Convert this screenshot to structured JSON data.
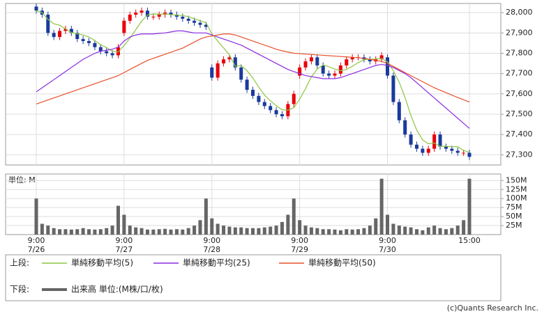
{
  "chart_data": [
    {
      "type": "candlestick",
      "open": [
        28030,
        28010,
        27990,
        27900,
        27880,
        27910,
        27920,
        27900,
        27870,
        27860,
        27850,
        27830,
        27810,
        27800,
        27790,
        27900,
        27960,
        27990,
        28000,
        28010,
        27980,
        27980,
        27990,
        28000,
        27990,
        27980,
        27970,
        27960,
        27950,
        27940,
        27730,
        27680,
        27750,
        27770,
        27780,
        27730,
        27670,
        27620,
        27590,
        27560,
        27540,
        27520,
        27500,
        27490,
        27550,
        27690,
        27730,
        27760,
        27780,
        27740,
        27700,
        27690,
        27700,
        27740,
        27770,
        27780,
        27780,
        27770,
        27760,
        27770,
        27780,
        27690,
        27560,
        27470,
        27400,
        27350,
        27330,
        27310,
        27330,
        27400,
        27340,
        27330,
        27320,
        27310,
        27310
      ],
      "high": [
        28045,
        28025,
        28005,
        27915,
        27925,
        27935,
        27935,
        27915,
        27885,
        27875,
        27865,
        27845,
        27825,
        27815,
        27845,
        27975,
        28005,
        28015,
        28025,
        28025,
        27995,
        28005,
        28015,
        28015,
        28005,
        27995,
        27985,
        27975,
        27965,
        27955,
        27745,
        27765,
        27785,
        27795,
        27795,
        27745,
        27685,
        27635,
        27605,
        27575,
        27555,
        27535,
        27515,
        27565,
        27615,
        27745,
        27775,
        27795,
        27795,
        27755,
        27715,
        27715,
        27755,
        27785,
        27795,
        27795,
        27795,
        27785,
        27785,
        27805,
        27795,
        27705,
        27575,
        27485,
        27415,
        27365,
        27345,
        27345,
        27415,
        27415,
        27355,
        27345,
        27335,
        27325,
        27325
      ],
      "low": [
        27995,
        27975,
        27885,
        27865,
        27865,
        27895,
        27885,
        27855,
        27845,
        27835,
        27815,
        27795,
        27785,
        27775,
        27775,
        27885,
        27945,
        27975,
        27985,
        27965,
        27965,
        27965,
        27975,
        27975,
        27965,
        27955,
        27945,
        27935,
        27925,
        27915,
        27665,
        27665,
        27735,
        27755,
        27715,
        27655,
        27605,
        27575,
        27545,
        27525,
        27505,
        27485,
        27475,
        27475,
        27535,
        27675,
        27715,
        27745,
        27725,
        27685,
        27675,
        27675,
        27685,
        27725,
        27755,
        27765,
        27755,
        27745,
        27745,
        27755,
        27675,
        27545,
        27455,
        27385,
        27335,
        27315,
        27295,
        27295,
        27315,
        27325,
        27315,
        27305,
        27295,
        27295,
        27275
      ],
      "close": [
        28010,
        27990,
        27900,
        27880,
        27910,
        27920,
        27900,
        27870,
        27860,
        27850,
        27830,
        27810,
        27800,
        27790,
        27830,
        27960,
        27990,
        28000,
        28010,
        27980,
        27980,
        27990,
        28000,
        27990,
        27980,
        27970,
        27960,
        27950,
        27940,
        27930,
        27680,
        27750,
        27770,
        27780,
        27730,
        27670,
        27620,
        27590,
        27560,
        27540,
        27520,
        27500,
        27490,
        27550,
        27600,
        27730,
        27760,
        27780,
        27740,
        27700,
        27690,
        27700,
        27740,
        27770,
        27780,
        27780,
        27770,
        27760,
        27770,
        27790,
        27690,
        27560,
        27470,
        27400,
        27350,
        27330,
        27310,
        27330,
        27400,
        27340,
        27330,
        27320,
        27310,
        27310,
        27290
      ],
      "up_color": "#e8000b",
      "down_color": "#1a3a9c",
      "ylim": [
        27250,
        28045
      ],
      "yticks": [
        {
          "value": 27300,
          "label": "27,300"
        },
        {
          "value": 27400,
          "label": "27,400"
        },
        {
          "value": 27500,
          "label": "27,500"
        },
        {
          "value": 27600,
          "label": "27,600"
        },
        {
          "value": 27700,
          "label": "27,700"
        },
        {
          "value": 27800,
          "label": "27,800"
        },
        {
          "value": 27900,
          "label": "27,900"
        },
        {
          "value": 28000,
          "label": "28,000"
        }
      ],
      "grid": true,
      "legend_label": "上段:",
      "series": [
        {
          "name": "単純移動平均(5)",
          "color": "#8cc63f",
          "values": [
            28010,
            28000,
            27967,
            27945,
            27938,
            27920,
            27902,
            27896,
            27890,
            27880,
            27862,
            27842,
            27828,
            27810,
            27806,
            27838,
            27874,
            27916,
            27958,
            27988,
            27994,
            27992,
            27994,
            27990,
            27988,
            27986,
            27980,
            27970,
            27960,
            27950,
            27896,
            27860,
            27826,
            27792,
            27736,
            27740,
            27714,
            27678,
            27634,
            27594,
            27566,
            27542,
            27522,
            27520,
            27532,
            27574,
            27626,
            27684,
            27722,
            27742,
            27734,
            27722,
            27714,
            27720,
            27736,
            27754,
            27768,
            27770,
            27772,
            27774,
            27758,
            27714,
            27658,
            27582,
            27494,
            27422,
            27374,
            27354,
            27358,
            27342,
            27342,
            27340,
            27340,
            27322,
            27312
          ]
        },
        {
          "name": "単純移動平均(25)",
          "color": "#8a2be2",
          "values": [
            27610,
            27630,
            27650,
            27670,
            27690,
            27710,
            27730,
            27750,
            27770,
            27785,
            27800,
            27810,
            27815,
            27820,
            27830,
            27860,
            27880,
            27890,
            27895,
            27895,
            27895,
            27898,
            27900,
            27905,
            27910,
            27910,
            27905,
            27900,
            27900,
            27900,
            27890,
            27880,
            27870,
            27860,
            27850,
            27840,
            27825,
            27810,
            27795,
            27780,
            27765,
            27750,
            27735,
            27720,
            27710,
            27700,
            27690,
            27685,
            27680,
            27675,
            27675,
            27675,
            27680,
            27690,
            27700,
            27710,
            27720,
            27730,
            27740,
            27745,
            27740,
            27730,
            27715,
            27700,
            27680,
            27655,
            27630,
            27605,
            27580,
            27555,
            27530,
            27505,
            27480,
            27455,
            27430
          ]
        },
        {
          "name": "単純移動平均(50)",
          "color": "#e8502a",
          "values": [
            27550,
            27560,
            27570,
            27580,
            27590,
            27600,
            27610,
            27620,
            27630,
            27640,
            27650,
            27660,
            27670,
            27680,
            27690,
            27705,
            27720,
            27735,
            27750,
            27765,
            27775,
            27785,
            27795,
            27805,
            27815,
            27825,
            27840,
            27855,
            27870,
            27880,
            27885,
            27890,
            27895,
            27895,
            27890,
            27880,
            27870,
            27860,
            27850,
            27840,
            27830,
            27820,
            27812,
            27806,
            27800,
            27798,
            27796,
            27794,
            27792,
            27790,
            27788,
            27786,
            27784,
            27782,
            27780,
            27778,
            27775,
            27770,
            27765,
            27760,
            27750,
            27735,
            27720,
            27705,
            27690,
            27675,
            27660,
            27645,
            27630,
            27618,
            27606,
            27594,
            27582,
            27571,
            27560
          ]
        }
      ]
    },
    {
      "type": "bar",
      "title": "単位: M",
      "name": "出来高 単位:(M株/口/枚)",
      "legend_label": "下段:",
      "color": "#666666",
      "categories": [
        "9:00\n7/26",
        null,
        null,
        null,
        null,
        null,
        null,
        null,
        null,
        null,
        null,
        null,
        null,
        null,
        null,
        "9:00\n7/27",
        null,
        null,
        null,
        null,
        null,
        null,
        null,
        null,
        null,
        null,
        null,
        null,
        null,
        null,
        "9:00\n7/28",
        null,
        null,
        null,
        null,
        null,
        null,
        null,
        null,
        null,
        null,
        null,
        null,
        null,
        null,
        "9:00\n7/29",
        null,
        null,
        null,
        null,
        null,
        null,
        null,
        null,
        null,
        null,
        null,
        null,
        null,
        null,
        "9:00\n7/30",
        null,
        null,
        null,
        null,
        null,
        null,
        null,
        null,
        null,
        null,
        null,
        null,
        null,
        "15:00"
      ],
      "values": [
        100,
        30,
        25,
        18,
        15,
        15,
        14,
        15,
        18,
        15,
        14,
        15,
        18,
        25,
        80,
        55,
        25,
        20,
        18,
        14,
        14,
        15,
        16,
        14,
        15,
        14,
        18,
        25,
        40,
        100,
        45,
        30,
        25,
        22,
        20,
        20,
        18,
        18,
        18,
        20,
        22,
        25,
        35,
        55,
        100,
        40,
        25,
        20,
        18,
        15,
        15,
        14,
        12,
        15,
        14,
        15,
        18,
        25,
        45,
        155,
        55,
        30,
        25,
        22,
        20,
        15,
        12,
        20,
        25,
        18,
        15,
        18,
        25,
        40,
        155
      ],
      "ylim": [
        0,
        168
      ],
      "yticks": [
        {
          "value": 25,
          "label": "25M"
        },
        {
          "value": 50,
          "label": "50M"
        },
        {
          "value": 75,
          "label": "75M"
        },
        {
          "value": 100,
          "label": "100M"
        },
        {
          "value": 125,
          "label": "125M"
        },
        {
          "value": 150,
          "label": "150M"
        }
      ],
      "grid": true
    }
  ],
  "credit": "(c)Quants Research Inc."
}
